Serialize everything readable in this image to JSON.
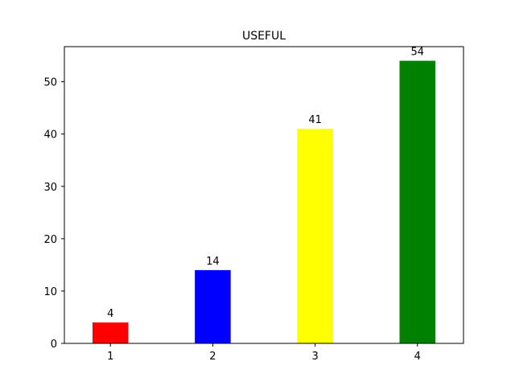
{
  "chart_data": {
    "type": "bar",
    "title": "USEFUL",
    "xlabel": "",
    "ylabel": "",
    "categories": [
      "1",
      "2",
      "3",
      "4"
    ],
    "values": [
      4,
      14,
      41,
      54
    ],
    "colors": [
      "#ff0000",
      "#0000ff",
      "#ffff00",
      "#008000"
    ],
    "ylim": [
      0,
      56.7
    ],
    "yticks": [
      "0",
      "10",
      "20",
      "30",
      "40",
      "50"
    ],
    "data_labels": [
      "4",
      "14",
      "41",
      "54"
    ],
    "grid": false,
    "legend": "none"
  }
}
